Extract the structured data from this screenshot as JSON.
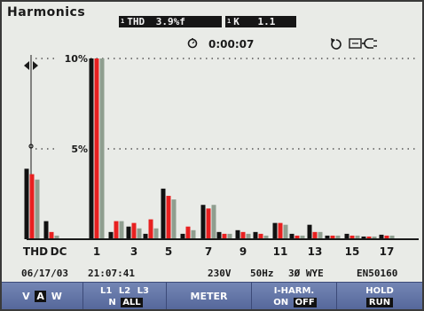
{
  "window": {
    "title": "Harmonics"
  },
  "readouts": {
    "thd": {
      "phase": "1",
      "label": "THD",
      "value": "3.9",
      "unit": "%f"
    },
    "k": {
      "phase": "1",
      "label": "K",
      "value": "1.1"
    }
  },
  "status_top": {
    "elapsed": "0:00:07"
  },
  "icons": {
    "timer": "timer-icon",
    "rotation": "phase-rotation-icon",
    "power": "mains-plug-icon",
    "cursor": "cursor-icon"
  },
  "chart_data": {
    "type": "bar",
    "categories": [
      "THD",
      "DC",
      "1",
      "2",
      "3",
      "4",
      "5",
      "6",
      "7",
      "8",
      "9",
      "10",
      "11",
      "12",
      "13",
      "14",
      "15",
      "16",
      "17"
    ],
    "category_tick_labels": [
      "THD",
      "DC",
      "1",
      "3",
      "5",
      "7",
      "9",
      "11",
      "13",
      "15",
      "17"
    ],
    "ylim": [
      0,
      10
    ],
    "y_ticks": [
      {
        "value": 10,
        "label": "10%"
      },
      {
        "value": 5,
        "label": "5%"
      }
    ],
    "series": [
      {
        "color": "#111111",
        "values": [
          3.9,
          1.0,
          10,
          0.4,
          0.7,
          0.3,
          2.8,
          0.3,
          1.9,
          0.4,
          0.5,
          0.4,
          0.9,
          0.3,
          0.8,
          0.2,
          0.3,
          0.15,
          0.25
        ]
      },
      {
        "color": "#e82020",
        "values": [
          3.6,
          0.4,
          10,
          1.0,
          0.9,
          1.1,
          2.4,
          0.7,
          1.7,
          0.3,
          0.4,
          0.3,
          0.9,
          0.2,
          0.4,
          0.2,
          0.2,
          0.15,
          0.2
        ]
      },
      {
        "color": "#8f9e8f",
        "values": [
          3.3,
          0.2,
          10,
          1.0,
          0.6,
          0.6,
          2.2,
          0.5,
          1.9,
          0.3,
          0.3,
          0.2,
          0.8,
          0.2,
          0.4,
          0.2,
          0.2,
          0.15,
          0.2
        ]
      }
    ],
    "grid": true
  },
  "status_bar": {
    "date": "06/17/03",
    "time": "21:07:41",
    "voltage": "230V",
    "frequency": "50Hz",
    "config": "3Ø WYE",
    "standard": "EN50160"
  },
  "softkeys": {
    "f1": {
      "opt1": "V",
      "opt2": "A",
      "opt3": "W",
      "selected": "A"
    },
    "f2": {
      "row1": [
        "L1",
        "L2",
        "L3"
      ],
      "row2": [
        "N",
        "ALL"
      ],
      "selected": "ALL"
    },
    "f3": {
      "label": "METER"
    },
    "f4": {
      "row1": "I-HARM.",
      "on": "ON",
      "off": "OFF",
      "selected": "OFF"
    },
    "f5": {
      "row1": "HOLD",
      "row2": "RUN"
    }
  },
  "colors": {
    "background": "#e9ebe7",
    "softkey_bar": "#5e70a4",
    "bar_phase1": "#111111",
    "bar_phase2": "#e82020",
    "bar_phase3": "#8f9e8f"
  }
}
